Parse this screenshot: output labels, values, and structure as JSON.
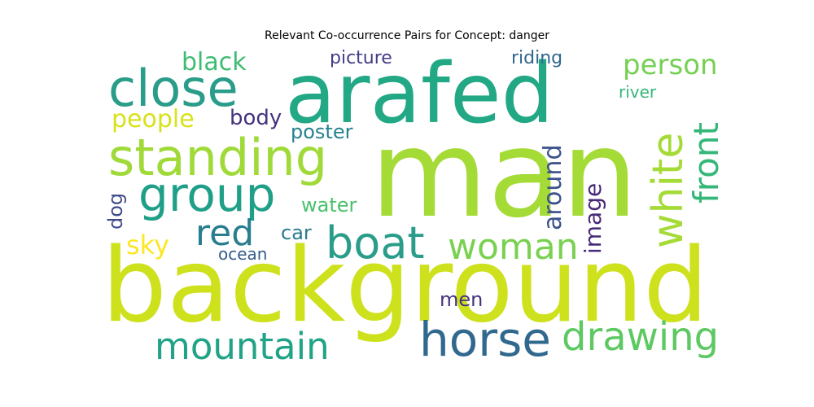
{
  "chart_data": {
    "type": "wordcloud",
    "title": "Relevant Co-occurrence Pairs for Concept: danger",
    "words": [
      {
        "text": "man",
        "weight": 100,
        "color": "#a5db36",
        "vertical": false
      },
      {
        "text": "background",
        "weight": 85,
        "color": "#cde11d",
        "vertical": false
      },
      {
        "text": "arafed",
        "weight": 70,
        "color": "#22a884",
        "vertical": false
      },
      {
        "text": "close",
        "weight": 40,
        "color": "#2a9d8a",
        "vertical": false
      },
      {
        "text": "standing",
        "weight": 38,
        "color": "#a0da39",
        "vertical": false
      },
      {
        "text": "group",
        "weight": 36,
        "color": "#1f9f88",
        "vertical": false
      },
      {
        "text": "horse",
        "weight": 36,
        "color": "#31688e",
        "vertical": false
      },
      {
        "text": "boat",
        "weight": 34,
        "color": "#2a9d8a",
        "vertical": false
      },
      {
        "text": "white",
        "weight": 30,
        "color": "#a5db36",
        "vertical": true
      },
      {
        "text": "drawing",
        "weight": 30,
        "color": "#5ec962",
        "vertical": false
      },
      {
        "text": "woman",
        "weight": 28,
        "color": "#7ad151",
        "vertical": false
      },
      {
        "text": "mountain",
        "weight": 28,
        "color": "#20a386",
        "vertical": false
      },
      {
        "text": "front",
        "weight": 26,
        "color": "#35b779",
        "vertical": true
      },
      {
        "text": "red",
        "weight": 26,
        "color": "#287d8e",
        "vertical": false
      },
      {
        "text": "person",
        "weight": 22,
        "color": "#75d054",
        "vertical": false
      },
      {
        "text": "black",
        "weight": 20,
        "color": "#3fbc73",
        "vertical": false
      },
      {
        "text": "around",
        "weight": 20,
        "color": "#3b528b",
        "vertical": true
      },
      {
        "text": "image",
        "weight": 18,
        "color": "#482878",
        "vertical": true
      },
      {
        "text": "people",
        "weight": 18,
        "color": "#d8e219",
        "vertical": false
      },
      {
        "text": "sky",
        "weight": 18,
        "color": "#fde725",
        "vertical": false
      },
      {
        "text": "dog",
        "weight": 16,
        "color": "#3e4a89",
        "vertical": true
      },
      {
        "text": "body",
        "weight": 16,
        "color": "#46327e",
        "vertical": false
      },
      {
        "text": "poster",
        "weight": 16,
        "color": "#26828e",
        "vertical": false
      },
      {
        "text": "water",
        "weight": 14,
        "color": "#4ac16d",
        "vertical": false
      },
      {
        "text": "car",
        "weight": 14,
        "color": "#287c8e",
        "vertical": false
      },
      {
        "text": "men",
        "weight": 14,
        "color": "#46327e",
        "vertical": false
      },
      {
        "text": "picture",
        "weight": 13,
        "color": "#433e85",
        "vertical": false
      },
      {
        "text": "riding",
        "weight": 13,
        "color": "#31688e",
        "vertical": false
      },
      {
        "text": "river",
        "weight": 12,
        "color": "#35b779",
        "vertical": false
      },
      {
        "text": "ocean",
        "weight": 12,
        "color": "#365c8d",
        "vertical": false
      }
    ]
  }
}
